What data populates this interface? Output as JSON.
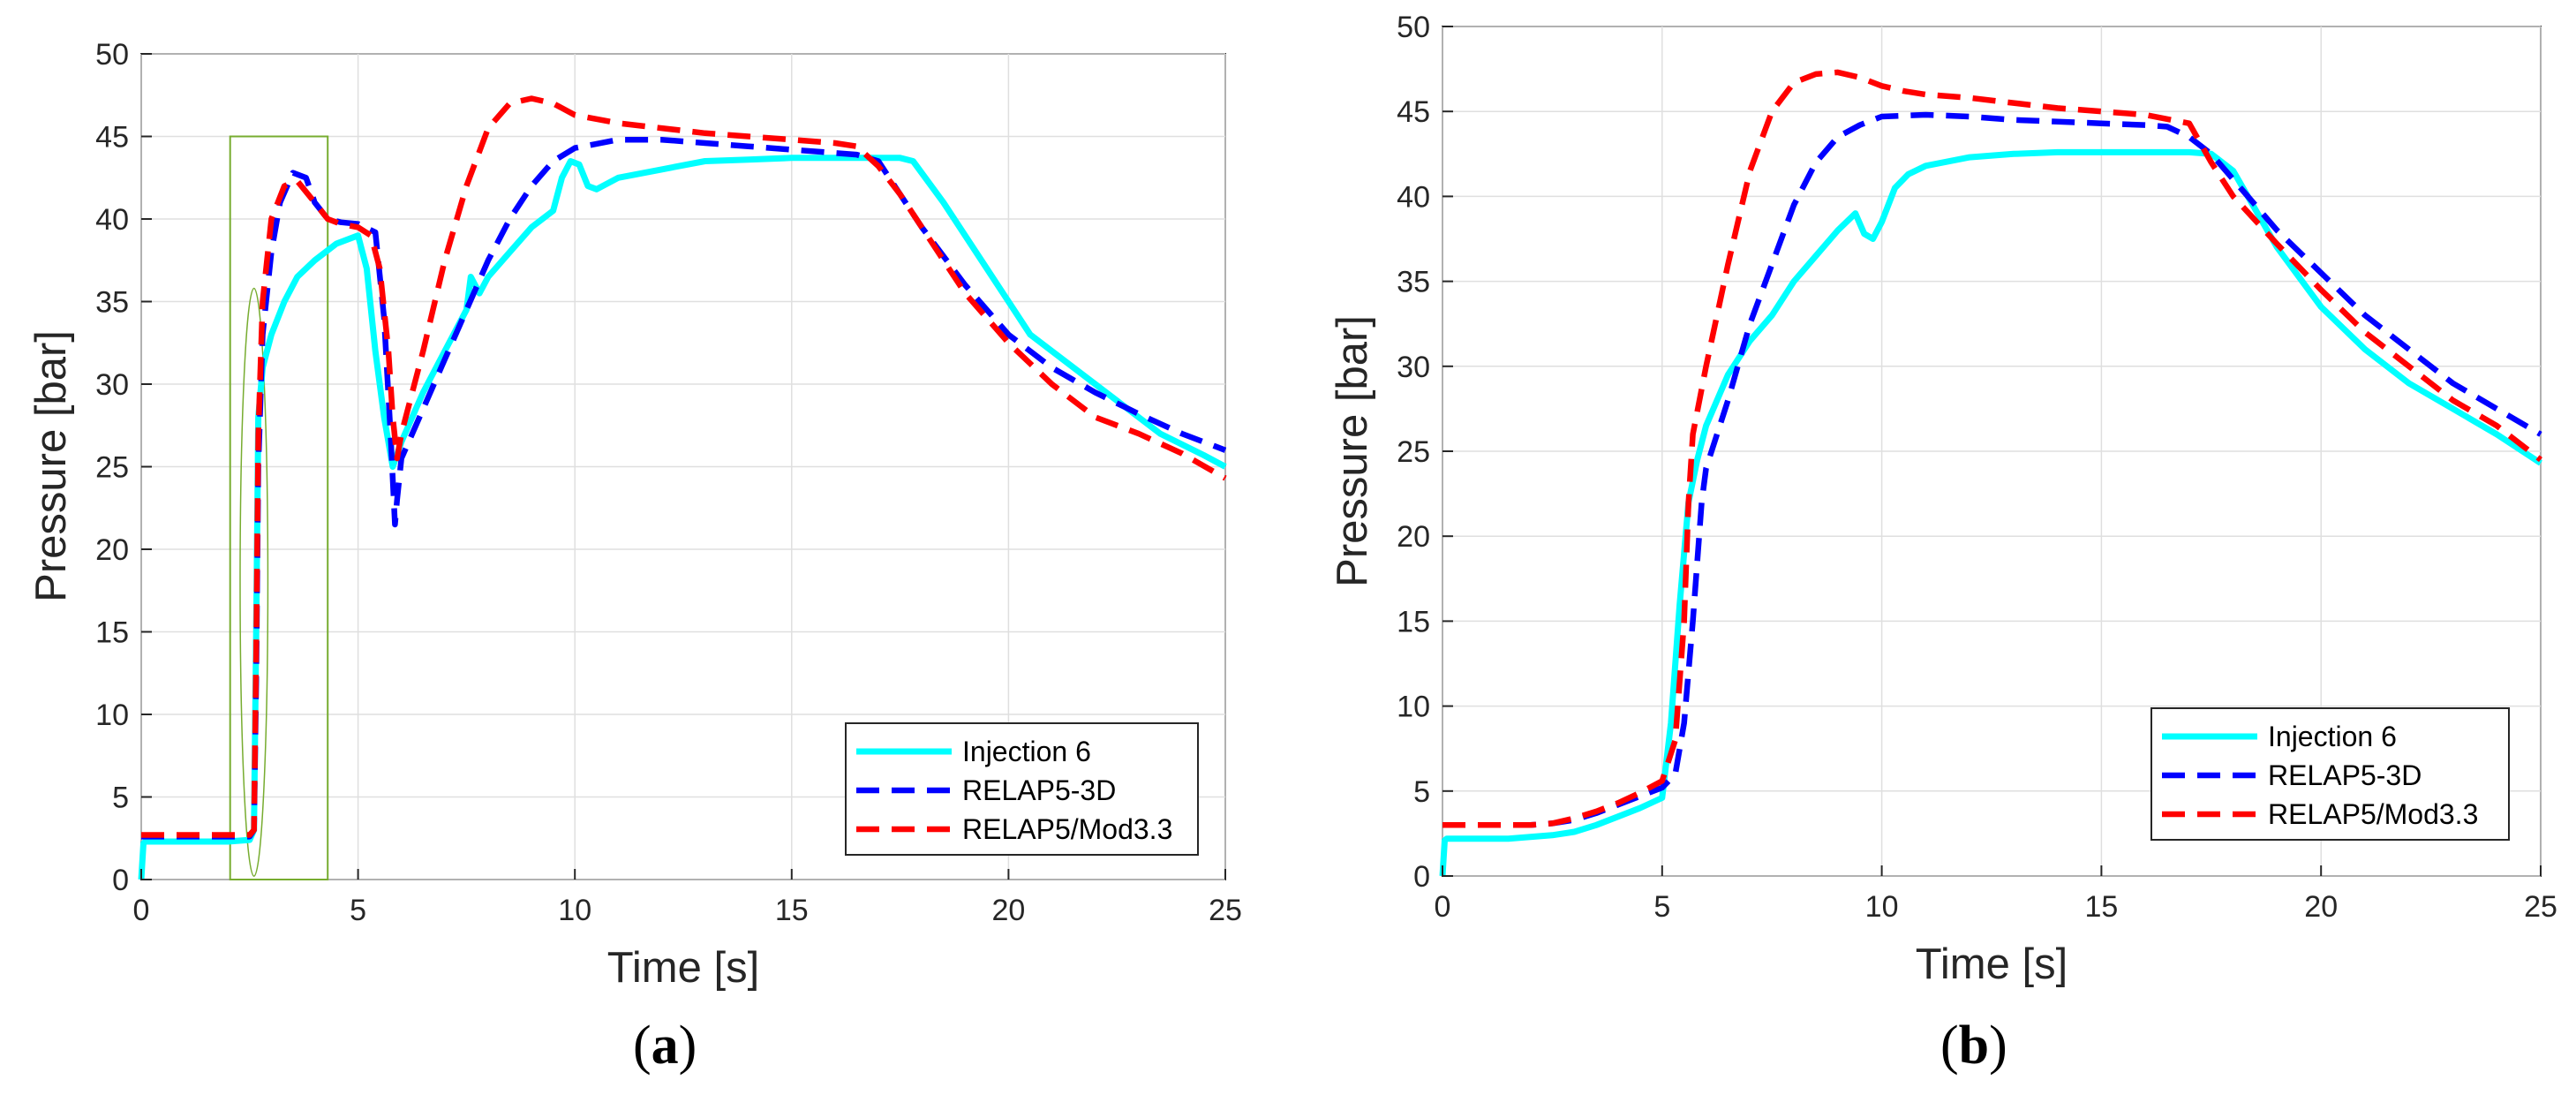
{
  "chart_data": [
    {
      "id": "a",
      "type": "line",
      "panel_label": "a",
      "xlabel": "Time [s]",
      "ylabel": "Pressure [bar]",
      "xlim": [
        0,
        25
      ],
      "ylim": [
        0,
        50
      ],
      "xticks": [
        0,
        5,
        10,
        15,
        20,
        25
      ],
      "yticks": [
        0,
        5,
        10,
        15,
        20,
        25,
        30,
        35,
        40,
        45,
        50
      ],
      "grid": true,
      "legend_position": "bottom-right",
      "annotations": [
        {
          "type": "rectangle",
          "x0": 2.05,
          "x1": 4.3,
          "y0": 0,
          "y1": 45,
          "color": "#77ac30"
        },
        {
          "type": "ellipse",
          "cx": 2.6,
          "cy": 18,
          "rx": 0.32,
          "ry": 17.8,
          "color": "#77ac30"
        }
      ],
      "series": [
        {
          "name": "Injection 6",
          "color": "#00ffff",
          "style": "solid",
          "x": [
            0,
            0.05,
            0.1,
            0.5,
            1.0,
            1.5,
            2.0,
            2.5,
            2.6,
            2.65,
            2.7,
            2.8,
            3.0,
            3.3,
            3.6,
            4.0,
            4.5,
            5.0,
            5.2,
            5.4,
            5.6,
            5.8,
            6.0,
            6.5,
            7.0,
            7.5,
            7.6,
            7.8,
            8.0,
            8.5,
            9.0,
            9.5,
            9.7,
            9.9,
            10.1,
            10.3,
            10.5,
            11,
            12,
            13,
            14,
            15,
            16,
            17,
            17.5,
            17.8,
            18.5,
            19.5,
            20.5,
            21.5,
            22.5,
            23.5,
            24.5,
            25
          ],
          "y": [
            0,
            2.2,
            2.3,
            2.3,
            2.3,
            2.3,
            2.3,
            2.4,
            3,
            15,
            28,
            31,
            33,
            35,
            36.5,
            37.5,
            38.5,
            39,
            37,
            32,
            28,
            25,
            26.5,
            29.5,
            32,
            34.5,
            36.5,
            35.5,
            36.5,
            38,
            39.5,
            40.5,
            42.5,
            43.5,
            43.3,
            42,
            41.8,
            42.5,
            43,
            43.5,
            43.6,
            43.7,
            43.7,
            43.7,
            43.7,
            43.5,
            41,
            37,
            33,
            31,
            29,
            27,
            25.7,
            25
          ]
        },
        {
          "name": "RELAP5-3D",
          "color": "#0000ff",
          "style": "dashed",
          "x": [
            0,
            2.5,
            2.6,
            2.65,
            2.7,
            2.8,
            3.0,
            3.2,
            3.5,
            3.8,
            4.0,
            4.3,
            4.6,
            5.0,
            5.4,
            5.6,
            5.75,
            5.85,
            5.9,
            6.0,
            6.5,
            7.0,
            7.5,
            8.0,
            8.5,
            9.0,
            9.5,
            10,
            11,
            12,
            13,
            14,
            15,
            16,
            16.5,
            17,
            17.5,
            18,
            19,
            20,
            21,
            22,
            23,
            24,
            25
          ],
          "y": [
            2.6,
            2.6,
            3,
            12,
            25,
            33,
            38,
            41,
            42.8,
            42.5,
            41,
            40,
            39.8,
            39.7,
            39.2,
            34,
            27,
            21.5,
            23,
            25.5,
            28.5,
            31.5,
            34.5,
            37.5,
            40,
            42,
            43.5,
            44.3,
            44.8,
            44.8,
            44.6,
            44.4,
            44.2,
            44.0,
            43.9,
            43.5,
            41.5,
            39.5,
            36,
            33,
            31,
            29.5,
            28.2,
            27,
            26
          ]
        },
        {
          "name": "RELAP5/Mod3.3",
          "color": "#ff0000",
          "style": "dashed",
          "x": [
            0,
            2.5,
            2.6,
            2.65,
            2.7,
            2.8,
            3.0,
            3.3,
            3.6,
            4.0,
            4.3,
            4.6,
            5.0,
            5.3,
            5.5,
            5.7,
            5.8,
            5.9,
            6.0,
            6.5,
            7.0,
            7.5,
            8.0,
            8.5,
            9.0,
            9.5,
            10,
            11,
            12,
            13,
            14,
            15,
            16,
            16.5,
            17,
            17.5,
            18,
            19,
            20,
            21,
            22,
            23,
            24,
            25
          ],
          "y": [
            2.7,
            2.7,
            3,
            14,
            27,
            35,
            40,
            42,
            42.3,
            41,
            40,
            39.7,
            39.5,
            39,
            37,
            32,
            28,
            25.5,
            27,
            32,
            37.5,
            42,
            45.5,
            47,
            47.3,
            47.0,
            46.3,
            45.8,
            45.5,
            45.2,
            45.0,
            44.8,
            44.6,
            44.4,
            43.2,
            41.5,
            39.5,
            35.5,
            32.5,
            30,
            28,
            27,
            25.8,
            24.3
          ]
        }
      ]
    },
    {
      "id": "b",
      "type": "line",
      "panel_label": "b",
      "xlabel": "Time [s]",
      "ylabel": "Pressure [bar]",
      "xlim": [
        0,
        25
      ],
      "ylim": [
        0,
        50
      ],
      "xticks": [
        0,
        5,
        10,
        15,
        20,
        25
      ],
      "yticks": [
        0,
        5,
        10,
        15,
        20,
        25,
        30,
        35,
        40,
        45,
        50
      ],
      "grid": true,
      "legend_position": "bottom-right",
      "annotations": [],
      "series": [
        {
          "name": "Injection 6",
          "color": "#00ffff",
          "style": "solid",
          "x": [
            0,
            0.05,
            0.1,
            0.5,
            1.0,
            1.5,
            2.0,
            2.5,
            3.0,
            3.5,
            4.0,
            4.5,
            5.0,
            5.2,
            5.4,
            5.6,
            5.8,
            6.0,
            6.5,
            7.0,
            7.5,
            8.0,
            8.5,
            9.0,
            9.4,
            9.6,
            9.8,
            10.0,
            10.3,
            10.6,
            11,
            12,
            13,
            14,
            15,
            16,
            17,
            17.5,
            18,
            19,
            20,
            21,
            22,
            23,
            24,
            25
          ],
          "y": [
            0,
            2.1,
            2.2,
            2.2,
            2.2,
            2.2,
            2.3,
            2.4,
            2.6,
            3.0,
            3.5,
            4.0,
            4.6,
            9,
            16,
            22,
            24.5,
            26.5,
            29.5,
            31.5,
            33,
            35,
            36.5,
            38,
            39,
            37.8,
            37.5,
            38.5,
            40.5,
            41.3,
            41.8,
            42.3,
            42.5,
            42.6,
            42.6,
            42.6,
            42.6,
            42.5,
            41.5,
            37,
            33.5,
            31,
            29,
            27.5,
            26,
            24.3
          ]
        },
        {
          "name": "RELAP5-3D",
          "color": "#0000ff",
          "style": "dashed",
          "x": [
            0,
            1.0,
            2.0,
            2.5,
            3.0,
            3.5,
            4.0,
            4.5,
            5.0,
            5.3,
            5.5,
            5.7,
            5.9,
            6.0,
            6.5,
            7.0,
            7.5,
            8.0,
            8.5,
            9.0,
            9.5,
            10,
            11,
            12,
            13,
            14,
            15,
            16,
            16.5,
            17,
            17.5,
            18,
            19,
            20,
            21,
            22,
            23,
            24,
            25
          ],
          "y": [
            3.0,
            3.0,
            3.0,
            3.1,
            3.3,
            3.7,
            4.2,
            4.7,
            5.2,
            6,
            9,
            15,
            22,
            24,
            28,
            32.5,
            36,
            39.5,
            42,
            43.5,
            44.2,
            44.7,
            44.8,
            44.7,
            44.5,
            44.4,
            44.3,
            44.2,
            44.1,
            43.5,
            42.5,
            41,
            38,
            35.5,
            33,
            31,
            29,
            27.5,
            26
          ]
        },
        {
          "name": "RELAP5/Mod3.3",
          "color": "#ff0000",
          "style": "dashed",
          "x": [
            0,
            1.0,
            2.0,
            2.5,
            3.0,
            3.5,
            4.0,
            4.5,
            5.0,
            5.3,
            5.5,
            5.6,
            5.7,
            6.0,
            6.5,
            7.0,
            7.5,
            8.0,
            8.5,
            9.0,
            9.5,
            10,
            10.5,
            11,
            12,
            13,
            14,
            15,
            16,
            17,
            17.5,
            18,
            19,
            20,
            21,
            22,
            23,
            24,
            25
          ],
          "y": [
            3.0,
            3.0,
            3.0,
            3.1,
            3.4,
            3.8,
            4.3,
            4.9,
            5.6,
            8,
            15,
            22,
            26,
            30,
            36,
            41.5,
            45,
            46.7,
            47.2,
            47.3,
            47.0,
            46.5,
            46.2,
            46.0,
            45.8,
            45.5,
            45.2,
            45.0,
            44.8,
            44.3,
            42,
            40,
            37.2,
            34.5,
            32,
            30,
            28,
            26.5,
            24.5
          ]
        }
      ]
    }
  ]
}
